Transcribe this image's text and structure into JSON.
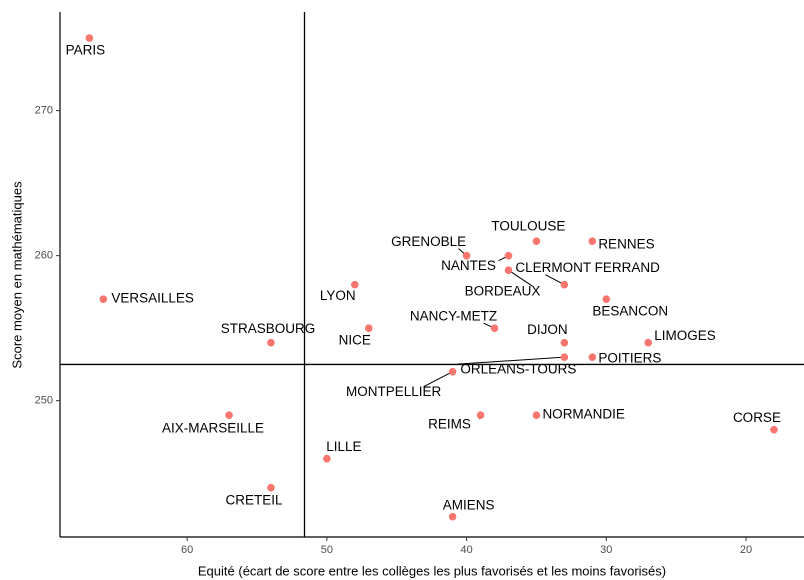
{
  "chart_data": {
    "type": "scatter",
    "xlabel": "Equité (écart de score entre les collèges les plus favorisés et les moins favorisés)",
    "ylabel": "Score moyen en mathématiques",
    "xlim": [
      69.1,
      15.85
    ],
    "xticks": [
      60,
      50,
      40,
      30,
      20
    ],
    "ylim": [
      240.6,
      276.8
    ],
    "yticks": [
      250,
      260,
      270
    ],
    "grid": false,
    "vline": 51.6,
    "hline": 252.5,
    "series": [
      {
        "color": "#F8766D",
        "labels": [
          "PARIS",
          "VERSAILLES",
          "STRASBOURG",
          "LYON",
          "NICE",
          "GRENOBLE",
          "NANTES",
          "TOULOUSE",
          "RENNES",
          "CLERMONT FERRAND",
          "BORDEAUX",
          "BESANCON",
          "NANCY-METZ",
          "DIJON",
          "LIMOGES",
          "POITIERS",
          "ORLEANS-TOURS",
          "MONTPELLIER",
          "REIMS",
          "NORMANDIE",
          "AIX-MARSEILLE",
          "LILLE",
          "CRETEIL",
          "AMIENS",
          "CORSE"
        ],
        "x": [
          67,
          66,
          54,
          48,
          47,
          40,
          37,
          35,
          31,
          33,
          37,
          30,
          38,
          33,
          27,
          31,
          33,
          41,
          39,
          35,
          57,
          50,
          54,
          41,
          18
        ],
        "values": [
          275,
          257,
          254,
          258,
          255,
          260,
          260,
          261,
          261,
          258,
          259,
          257,
          255,
          254,
          254,
          253,
          253,
          252,
          249,
          249,
          249,
          246,
          244,
          242,
          248
        ]
      }
    ]
  }
}
